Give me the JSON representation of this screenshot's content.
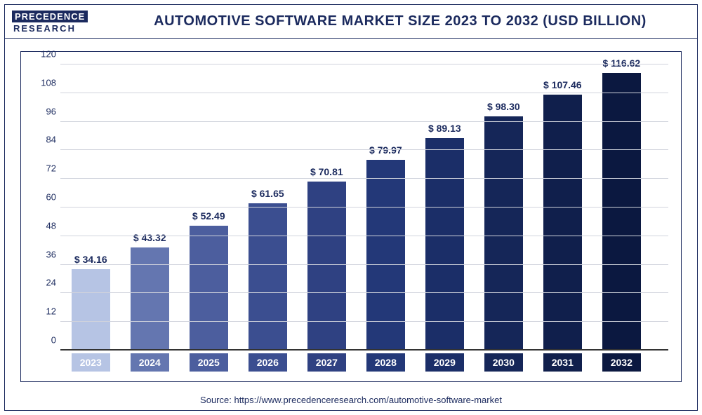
{
  "logo": {
    "top": "PRECEDENCE",
    "bottom": "RESEARCH"
  },
  "title": "AUTOMOTIVE SOFTWARE MARKET SIZE 2023 TO 2032 (USD BILLION)",
  "source": "Source: https://www.precedenceresearch.com/automotive-software-market",
  "chart": {
    "type": "bar",
    "ylim": [
      0,
      120
    ],
    "yticks": [
      0,
      12,
      24,
      36,
      48,
      60,
      72,
      84,
      96,
      108,
      120
    ],
    "grid_color": "#d0d3dc",
    "baseline_color": "#333333",
    "tick_color": "#1b2a5e",
    "tick_fontsize": 13,
    "value_label_fontsize": 14,
    "value_label_color": "#1b2a5e",
    "x_label_bg_colors": [
      "#b6c4e4",
      "#6476b0",
      "#4c5e9e",
      "#3b4e90",
      "#2f4182",
      "#233878",
      "#1b2e68",
      "#152658",
      "#101f4c",
      "#0b1840"
    ],
    "bar_colors": [
      "#b6c4e4",
      "#6476b0",
      "#4c5e9e",
      "#3b4e90",
      "#2f4182",
      "#233878",
      "#1b2e68",
      "#152658",
      "#101f4c",
      "#0b1840"
    ],
    "bar_width_pct": 6.4,
    "gap_pct": 3.3,
    "left_pad_pct": 1.8,
    "categories": [
      "2023",
      "2024",
      "2025",
      "2026",
      "2027",
      "2028",
      "2029",
      "2030",
      "2031",
      "2032"
    ],
    "values": [
      34.16,
      43.32,
      52.49,
      61.65,
      70.81,
      79.97,
      89.13,
      98.3,
      107.46,
      116.62
    ],
    "value_labels": [
      "$ 34.16",
      "$ 43.32",
      "$ 52.49",
      "$ 61.65",
      "$ 70.81",
      "$ 79.97",
      "$ 89.13",
      "$ 98.30",
      "$ 107.46",
      "$ 116.62"
    ]
  }
}
